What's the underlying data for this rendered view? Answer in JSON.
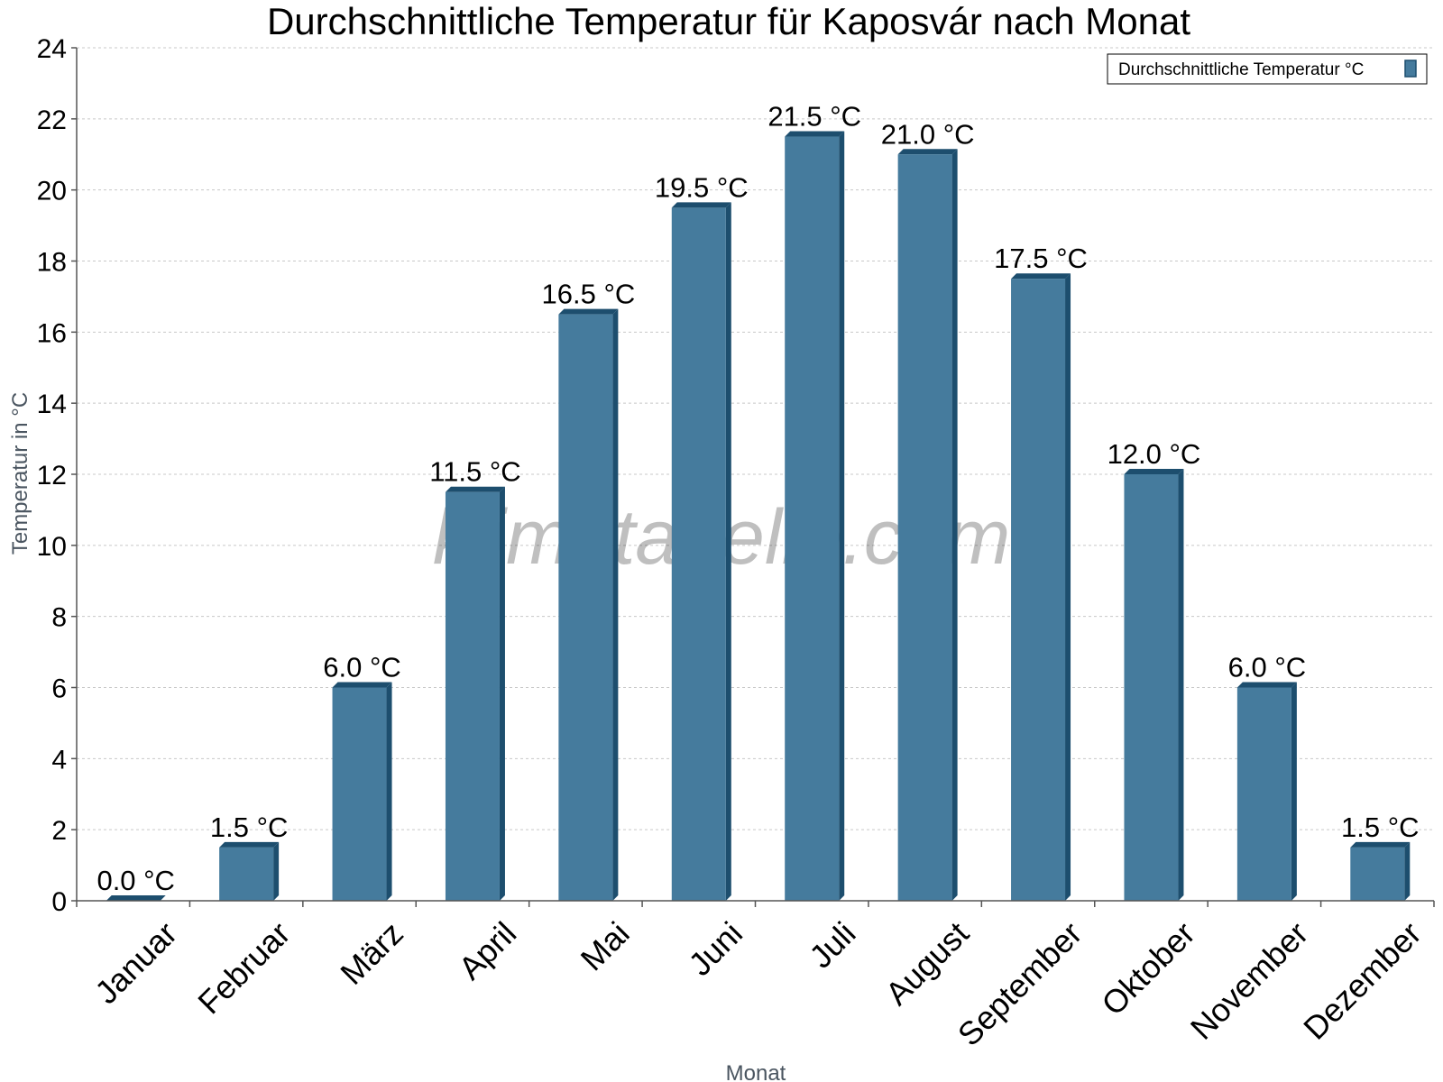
{
  "chart_data": {
    "type": "bar",
    "title": "Durchschnittliche Temperatur für Kaposvár nach Monat",
    "xlabel": "Monat",
    "ylabel": "Temperatur in °C",
    "categories": [
      "Januar",
      "Februar",
      "März",
      "April",
      "Mai",
      "Juni",
      "Juli",
      "August",
      "September",
      "Oktober",
      "November",
      "Dezember"
    ],
    "series": [
      {
        "name": "Durchschnittliche Temperatur °C",
        "values": [
          0.0,
          1.5,
          6.0,
          11.5,
          16.5,
          19.5,
          21.5,
          21.0,
          17.5,
          12.0,
          6.0,
          1.5
        ],
        "labels": [
          "0.0 °C",
          "1.5 °C",
          "6.0 °C",
          "11.5 °C",
          "16.5 °C",
          "19.5 °C",
          "21.5 °C",
          "21.0 °C",
          "17.5 °C",
          "12.0 °C",
          "6.0 °C",
          "1.5 °C"
        ]
      }
    ],
    "ylim": [
      0,
      24
    ],
    "yticks": [
      "0",
      "2",
      "4",
      "6",
      "8",
      "10",
      "12",
      "14",
      "16",
      "18",
      "20",
      "22",
      "24"
    ],
    "grid": true,
    "legend_position": "top-right",
    "watermark": "klimatabelle.com",
    "colors": {
      "bar_face": "#457b9d",
      "bar_side": "#1d4e6e",
      "grid": "#c8c8c8",
      "axis": "#555555"
    }
  }
}
